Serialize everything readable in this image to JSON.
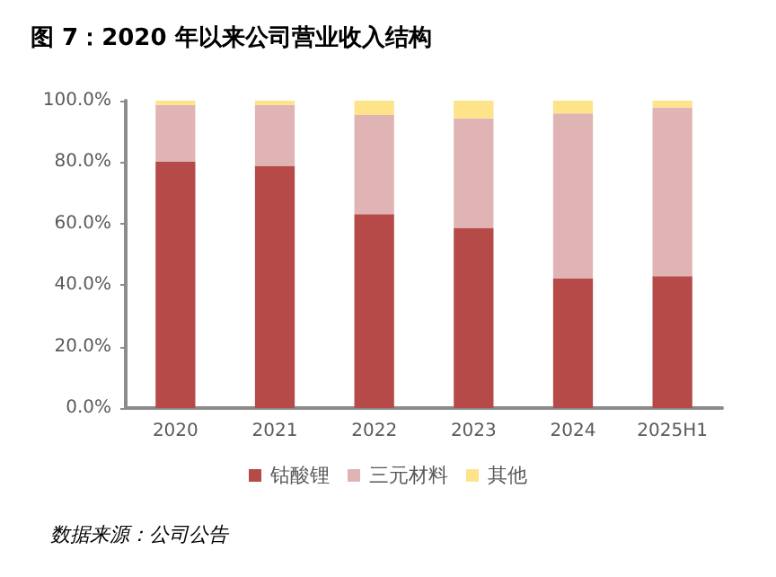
{
  "chart_data": {
    "type": "bar",
    "title": "图 7：2020 年以来公司营业收入结构",
    "stacked": true,
    "categories": [
      "2020",
      "2021",
      "2022",
      "2023",
      "2024",
      "2025H1"
    ],
    "series": [
      {
        "name": "钴酸锂",
        "color": "#b54a48",
        "values": [
          80.1,
          78.8,
          63.1,
          58.6,
          42.1,
          42.9
        ]
      },
      {
        "name": "三元材料",
        "color": "#e0b4b5",
        "values": [
          18.5,
          19.8,
          32.2,
          35.6,
          53.7,
          54.9
        ]
      },
      {
        "name": "其他",
        "color": "#fde38a",
        "values": [
          1.4,
          1.4,
          4.7,
          5.8,
          4.2,
          2.2
        ]
      }
    ],
    "ylim": [
      0,
      100
    ],
    "yticks": [
      {
        "value": 0,
        "label": "0.0%"
      },
      {
        "value": 20,
        "label": "20.0%"
      },
      {
        "value": 40,
        "label": "40.0%"
      },
      {
        "value": 60,
        "label": "60.0%"
      },
      {
        "value": 80,
        "label": "80.0%"
      },
      {
        "value": 100,
        "label": "100.0%"
      }
    ],
    "grid": false,
    "legend": "bottom",
    "annotations": [
      "数据来源：公司公告"
    ]
  }
}
